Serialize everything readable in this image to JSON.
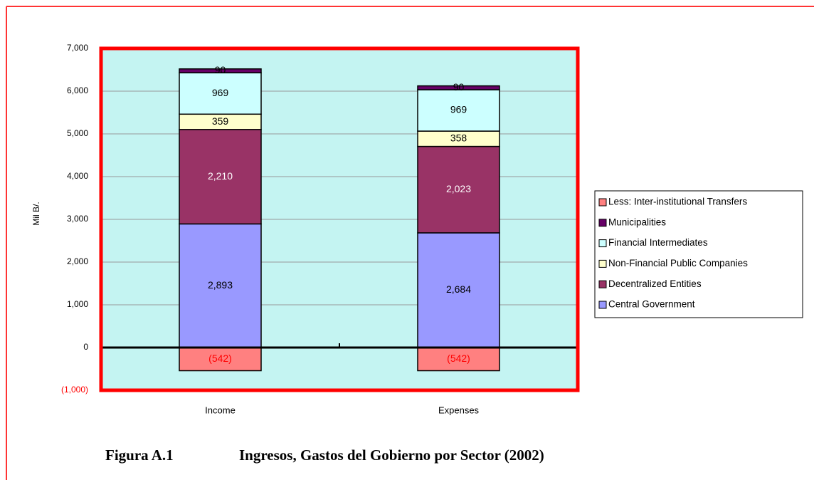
{
  "chart_data": {
    "type": "stacked_bar",
    "y_label": "Mil B/.",
    "caption": {
      "label": "Figura A.1",
      "text": "Ingresos, Gastos del Gobierno por Sector (2002)"
    },
    "categories": [
      "Income",
      "Expenses"
    ],
    "series": [
      {
        "name": "Central Government",
        "color": "#9999ff",
        "label_color": "#000000",
        "values": [
          2893,
          2684
        ],
        "value_labels": [
          "2,893",
          "2,684"
        ]
      },
      {
        "name": "Decentralized Entities",
        "color": "#993366",
        "label_color": "#ffffff",
        "values": [
          2210,
          2023
        ],
        "value_labels": [
          "2,210",
          "2,023"
        ]
      },
      {
        "name": "Non-Financial Public Companies",
        "color": "#ffffcc",
        "label_color": "#000000",
        "values": [
          359,
          358
        ]
      },
      {
        "name": "Financial Intermediates",
        "color": "#ccffff",
        "label_color": "#000000",
        "values": [
          969,
          969
        ]
      },
      {
        "name": "Municipalities",
        "color": "#660066",
        "label_color": "#000000",
        "values": [
          90,
          90
        ]
      },
      {
        "name": "Less: Inter-institutional Transfers",
        "color": "#ff8080",
        "label_color": "#ff0000",
        "values": [
          -542,
          -542
        ],
        "value_labels": [
          "(542)",
          "(542)"
        ]
      }
    ],
    "ylim": [
      -1000,
      7000
    ],
    "yticks": [
      {
        "value": -1000,
        "label": "(1,000)"
      },
      0,
      {
        "value": 1000,
        "label": "1,000"
      },
      {
        "value": 2000,
        "label": "2,000"
      },
      {
        "value": 3000,
        "label": "3,000"
      },
      {
        "value": 4000,
        "label": "4,000"
      },
      {
        "value": 5000,
        "label": "5,000"
      },
      {
        "value": 6000,
        "label": "6,000"
      },
      {
        "value": 7000,
        "label": "7,000"
      }
    ],
    "grid": true,
    "plot_background": "#c4f4f2",
    "legend": "right"
  }
}
